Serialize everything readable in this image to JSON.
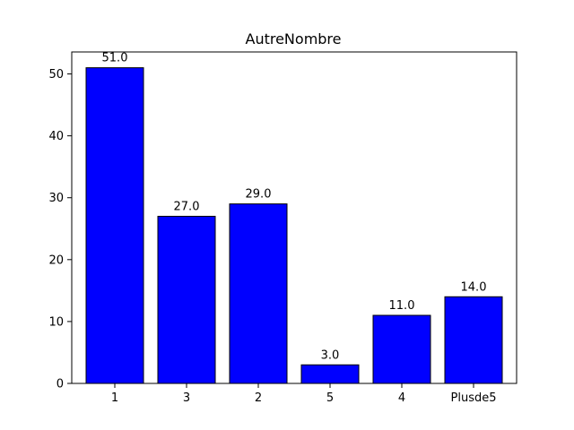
{
  "chart_data": {
    "type": "bar",
    "title": "AutreNombre",
    "xlabel": "",
    "ylabel": "",
    "categories": [
      "1",
      "3",
      "2",
      "5",
      "4",
      "Plusde5"
    ],
    "values": [
      51.0,
      27.0,
      29.0,
      3.0,
      11.0,
      14.0
    ],
    "value_labels": [
      "51.0",
      "27.0",
      "29.0",
      "3.0",
      "11.0",
      "14.0"
    ],
    "y_ticks": [
      0,
      10,
      20,
      30,
      40,
      50
    ],
    "y_tick_labels": [
      "0",
      "10",
      "20",
      "30",
      "40",
      "50"
    ],
    "ylim": [
      0,
      53.55
    ],
    "grid": false,
    "legend": "none",
    "bar_color": "#0000ff",
    "bar_edge_color": "#000000"
  }
}
